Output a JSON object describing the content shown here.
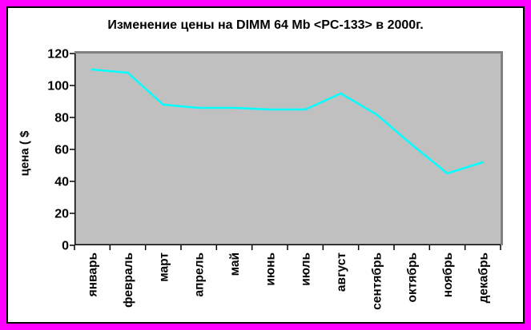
{
  "window": {
    "frame_color": "#FF00FF",
    "inner_border_color": "#000000",
    "background": "#FFFFFF"
  },
  "chart_data": {
    "type": "line",
    "title": "Изменение цены на DIMM 64 Mb <PC-133> в 2000г.",
    "ylabel": "цена ( $",
    "xlabel": "",
    "categories": [
      "январь",
      "февраль",
      "март",
      "апрель",
      "май",
      "июнь",
      "июль",
      "август",
      "сентябрь",
      "октябрь",
      "ноябрь",
      "декабрь"
    ],
    "values": [
      110,
      108,
      88,
      86,
      86,
      85,
      85,
      95,
      82,
      63,
      45,
      52
    ],
    "ylim": [
      0,
      120
    ],
    "ytick_step": 20,
    "ytick_labels": [
      "0",
      "20",
      "40",
      "60",
      "80",
      "100",
      "120"
    ],
    "grid": false,
    "legend": "none",
    "colors": {
      "line": "#00FFFF",
      "plot_bg": "#C0C0C0",
      "plot_shadow": "#808080",
      "axis": "#000000",
      "text": "#000000"
    }
  }
}
